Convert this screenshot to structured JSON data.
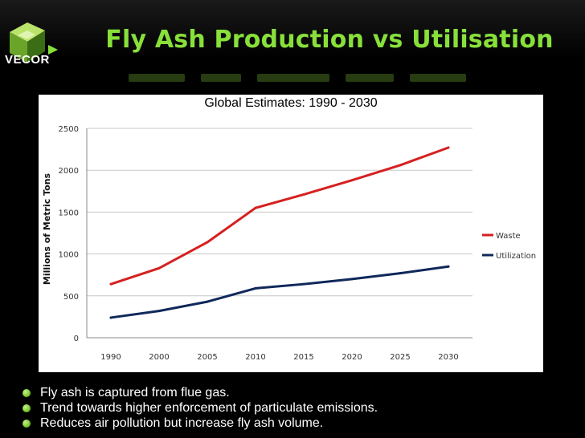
{
  "header": {
    "title": "Fly Ash Production vs Utilisation",
    "logo_text": "VECOR",
    "accent": "#88e03a"
  },
  "chart_data": {
    "type": "line",
    "title": "Global Estimates: 1990 - 2030",
    "xlabel": "",
    "ylabel": "Millions of Metric Tons",
    "categories": [
      "1990",
      "2000",
      "2005",
      "2010",
      "2015",
      "2020",
      "2025",
      "2030"
    ],
    "ylim": [
      0,
      2500
    ],
    "yticks": [
      0,
      500,
      1000,
      1500,
      2000,
      2500
    ],
    "grid": true,
    "legend": "right",
    "series": [
      {
        "name": "Waste",
        "color": "#d62020",
        "values": [
          640,
          830,
          1140,
          1550,
          1710,
          1880,
          2060,
          2270
        ]
      },
      {
        "name": "Utilization",
        "color": "#10285a",
        "values": [
          240,
          320,
          430,
          590,
          640,
          700,
          770,
          850
        ]
      }
    ]
  },
  "bullets": [
    "Fly ash is captured from flue gas.",
    "Trend towards higher enforcement of particulate emissions.",
    "Reduces air pollution but increase fly ash volume."
  ]
}
